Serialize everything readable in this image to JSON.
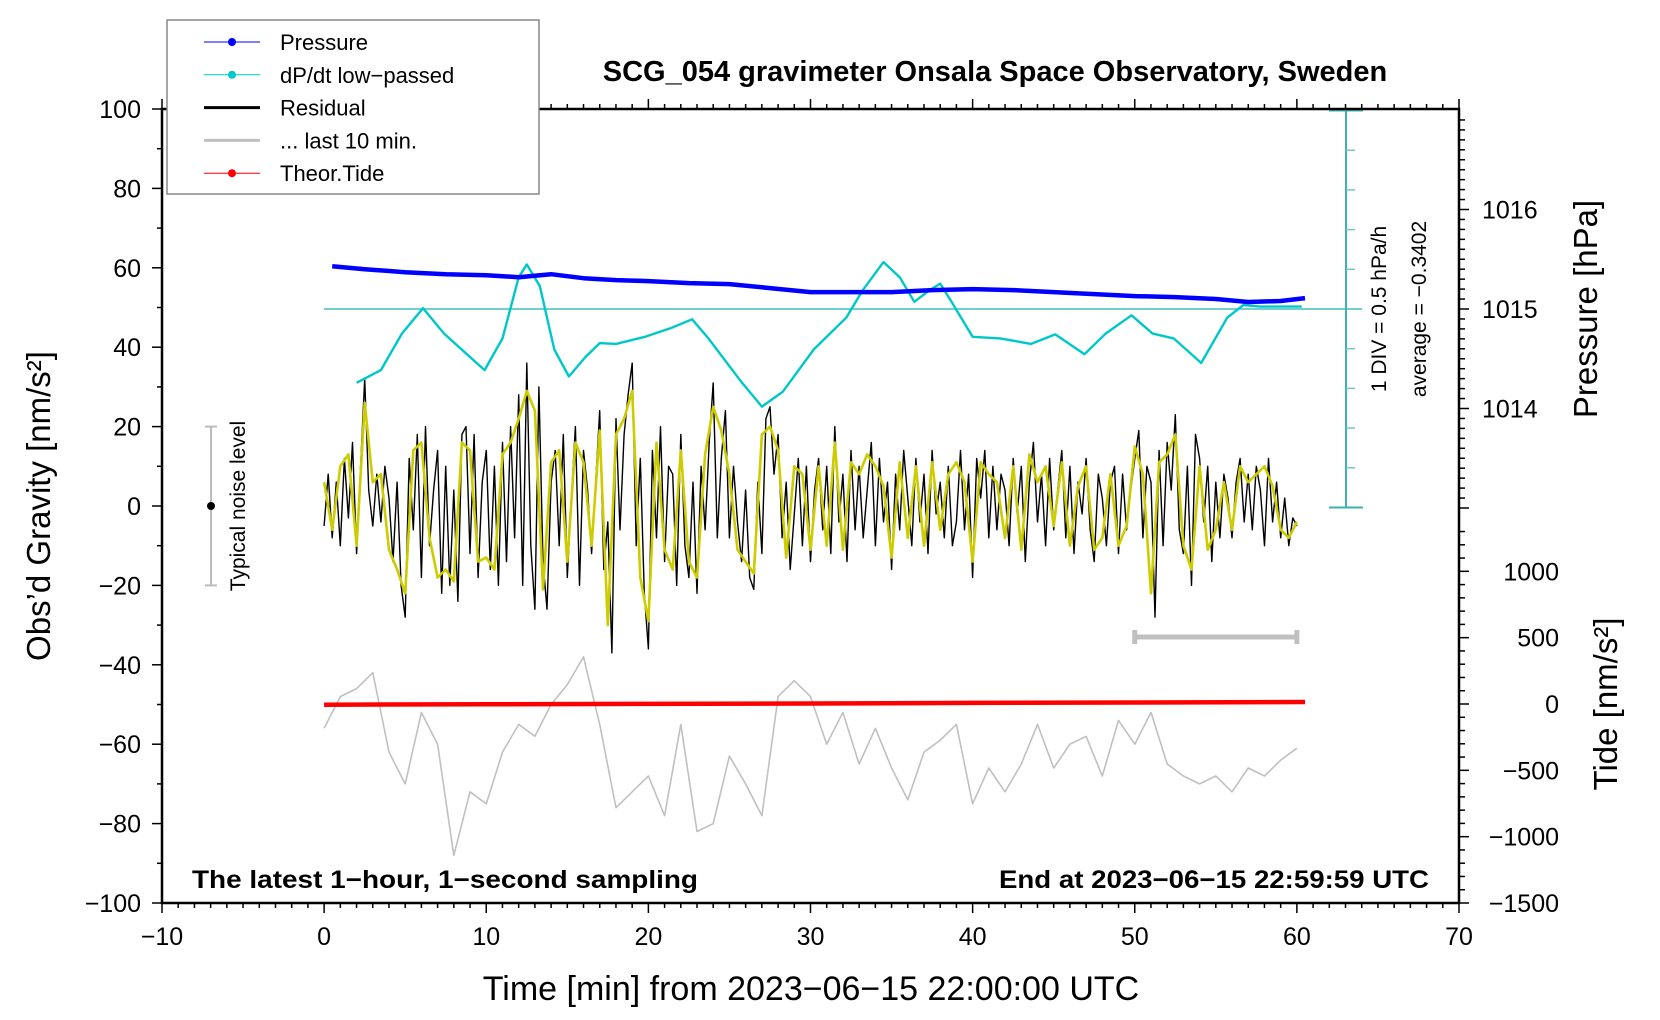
{
  "chart_data": {
    "type": "line",
    "title": "SCG_054 gravimeter Onsala Space Observatory, Sweden",
    "xlabel": "Time [min] from 2023−06−15 22:00:00 UTC",
    "ylabel": "Obs’d Gravity [nm/s²]",
    "ylabel_pressure": "Pressure [hPa]",
    "ylabel_tide": "Tide [nm/s²]",
    "xlim": [
      -10,
      70
    ],
    "ylim": [
      -100,
      100
    ],
    "grid": false,
    "legend_placement": "top-left",
    "x_ticks": [
      -10,
      0,
      10,
      20,
      30,
      40,
      50,
      60,
      70
    ],
    "x_tick_labels": [
      "−10",
      "0",
      "10",
      "20",
      "30",
      "40",
      "50",
      "60",
      "70"
    ],
    "y_ticks": [
      100,
      80,
      60,
      40,
      20,
      0,
      -20,
      -40,
      -60,
      -80,
      -100
    ],
    "y_tick_labels": [
      "100",
      "80",
      "60",
      "40",
      "20",
      "0",
      "−20",
      "−40",
      "−60",
      "−80",
      "−100"
    ],
    "pressure_ticks": [
      1016,
      1015,
      1014
    ],
    "pressure_tick_labels": [
      "1016",
      "1015",
      "1014"
    ],
    "tide_ticks": [
      1000,
      500,
      0,
      -500,
      -1000,
      -1500
    ],
    "tide_tick_labels": [
      "1000",
      "500",
      "0",
      "−500",
      "−1000",
      "−1500"
    ],
    "legend": [
      {
        "label": "Pressure",
        "color": "#0000ff",
        "style": "line-dot"
      },
      {
        "label": "dP/dt low−passed",
        "color": "#00c8c8",
        "style": "line-dot"
      },
      {
        "label": "Residual",
        "color": "#000000",
        "style": "thick-line"
      },
      {
        "label": "... last 10 min.",
        "color": "#c0c0c0",
        "style": "thick-line"
      },
      {
        "label": "Theor.Tide",
        "color": "#ff0000",
        "style": "line-dot"
      }
    ],
    "annotations": {
      "dpdt_scale": "1 DIV = 0.5 hPa/h",
      "dpdt_average": "average = −0.3402",
      "dpdt_average_value": -0.3402,
      "dpdt_div_value": 0.5,
      "noise_label": "Typical noise level",
      "noise_range": [
        -20,
        20
      ],
      "footer_left": "The latest 1−hour, 1−second sampling",
      "footer_right": "End at 2023−06−15 22:59:59 UTC",
      "last10_bar_range_min": [
        50,
        60
      ],
      "last10_bar_level": -33
    },
    "series": [
      {
        "name": "Residual",
        "color": "#000000",
        "x_start": 0,
        "x_step": 0.25,
        "values": [
          -5,
          8,
          -8,
          6,
          -10,
          12,
          -3,
          16,
          -12,
          10,
          32,
          4,
          -5,
          8,
          -4,
          10,
          2,
          -14,
          6,
          -20,
          -28,
          12,
          -6,
          18,
          -18,
          20,
          -10,
          4,
          14,
          -22,
          10,
          -20,
          4,
          -24,
          18,
          20,
          -12,
          18,
          -18,
          6,
          14,
          -16,
          10,
          -20,
          16,
          -14,
          20,
          -8,
          28,
          -20,
          36,
          -10,
          -26,
          30,
          -14,
          -26,
          6,
          14,
          -10,
          18,
          -18,
          2,
          20,
          -20,
          14,
          4,
          -12,
          6,
          24,
          -16,
          -4,
          -37,
          22,
          -6,
          18,
          28,
          36,
          -10,
          12,
          -22,
          -36,
          14,
          -8,
          20,
          -14,
          10,
          8,
          -20,
          18,
          -10,
          -18,
          6,
          -22,
          10,
          -6,
          16,
          31,
          -8,
          12,
          24,
          -8,
          10,
          -4,
          -14,
          4,
          -18,
          -21,
          6,
          -12,
          22,
          25,
          8,
          18,
          -8,
          6,
          -16,
          -2,
          12,
          -10,
          10,
          -14,
          4,
          12,
          -6,
          10,
          -12,
          20,
          -4,
          8,
          -14,
          14,
          -6,
          10,
          -8,
          4,
          16,
          -10,
          12,
          -4,
          6,
          -16,
          8,
          -6,
          14,
          2,
          -10,
          12,
          -4,
          8,
          -12,
          14,
          -2,
          6,
          -8,
          10,
          -10,
          -4,
          14,
          -6,
          8,
          -18,
          12,
          2,
          14,
          -8,
          10,
          -6,
          8,
          4,
          -10,
          12,
          -2,
          10,
          -14,
          6,
          16,
          -4,
          8,
          -10,
          12,
          -6,
          4,
          14,
          -8,
          10,
          -12,
          6,
          -2,
          12,
          -6,
          -14,
          8,
          2,
          -10,
          6,
          10,
          -12,
          8,
          -6,
          4,
          12,
          19,
          -8,
          10,
          6,
          -28,
          14,
          -10,
          16,
          4,
          23,
          -6,
          -12,
          10,
          -20,
          18,
          12,
          -4,
          10,
          -14,
          6,
          -8,
          8,
          2,
          -8,
          6,
          12,
          -4,
          8,
          -6,
          10,
          4,
          -10,
          12,
          -4,
          6,
          -8,
          2,
          -10,
          -3,
          -5
        ]
      },
      {
        "name": "Residual (filtered)",
        "color": "#cccc00",
        "x_start": 0,
        "x_step": 0.5,
        "values": [
          6,
          -6,
          10,
          13,
          -10,
          26,
          6,
          8,
          -11,
          -16,
          -22,
          14,
          16,
          -8,
          -18,
          -16,
          -19,
          16,
          14,
          -14,
          -13,
          -16,
          13,
          16,
          22,
          29,
          24,
          -21,
          11,
          14,
          -14,
          16,
          11,
          -10,
          19,
          -30,
          18,
          22,
          29,
          -18,
          -29,
          16,
          -11,
          -16,
          14,
          -14,
          -18,
          13,
          25,
          19,
          8,
          -11,
          -14,
          -17,
          18,
          20,
          14,
          -13,
          10,
          8,
          -11,
          10,
          -10,
          16,
          -11,
          11,
          8,
          13,
          10,
          5,
          -13,
          11,
          -8,
          10,
          -10,
          11,
          -6,
          8,
          11,
          6,
          -14,
          11,
          8,
          6,
          -8,
          10,
          -11,
          13,
          6,
          10,
          -5,
          11,
          -10,
          5,
          10,
          -11,
          -8,
          8,
          -10,
          -5,
          15,
          8,
          -22,
          11,
          13,
          18,
          -10,
          -16,
          10,
          -11,
          -6,
          6,
          -6,
          10,
          6,
          8,
          10,
          5,
          -6,
          -8,
          -4
        ]
      },
      {
        "name": "... last 10 min.",
        "color": "#c0c0c0",
        "x_start": 0,
        "x_step": 1,
        "values": [
          -56,
          -48,
          -46,
          -42,
          -62,
          -70,
          -52,
          -60,
          -88,
          -72,
          -75,
          -62,
          -55,
          -58,
          -50,
          -45,
          -38,
          -55,
          -76,
          -72,
          -68,
          -78,
          -55,
          -82,
          -80,
          -63,
          -70,
          -78,
          -48,
          -44,
          -48,
          -60,
          -52,
          -65,
          -56,
          -66,
          -74,
          -62,
          -59,
          -55,
          -75,
          -66,
          -72,
          -65,
          -55,
          -66,
          -60,
          -58,
          -68,
          -54,
          -60,
          -52,
          -65,
          -68,
          -70,
          -68,
          -72,
          -66,
          -68,
          -64,
          -61
        ]
      },
      {
        "name": "Pressure",
        "unit": "hPa",
        "color": "#0000ff",
        "x": [
          0.5,
          2.5,
          5,
          7.5,
          10,
          12,
          14,
          16,
          18,
          20,
          22.5,
          25,
          27.5,
          30,
          32.5,
          35,
          37.5,
          40,
          42.5,
          45,
          47.5,
          50,
          52.5,
          55,
          57,
          59,
          60.5
        ],
        "values": [
          1015.43,
          1015.4,
          1015.37,
          1015.35,
          1015.34,
          1015.32,
          1015.35,
          1015.31,
          1015.29,
          1015.28,
          1015.26,
          1015.25,
          1015.21,
          1015.17,
          1015.17,
          1015.17,
          1015.19,
          1015.2,
          1015.19,
          1015.17,
          1015.15,
          1015.13,
          1015.12,
          1015.1,
          1015.07,
          1015.08,
          1015.11
        ]
      },
      {
        "name": "dP/dt low-passed",
        "unit": "hPa/h",
        "color": "#00c8c8",
        "x": [
          2.0,
          3.5,
          4.8,
          6.1,
          7.4,
          8.7,
          9.9,
          11,
          12,
          12.5,
          13.3,
          14.2,
          15.1,
          16.1,
          17,
          18,
          19.8,
          21.4,
          22.7,
          23.7,
          25.7,
          27,
          28.3,
          30.2,
          32.2,
          33.2,
          34.5,
          35.5,
          36.4,
          37.3,
          38,
          38.7,
          40,
          41.7,
          43.6,
          45.1,
          46.9,
          48.2,
          49.8,
          51.1,
          52.4,
          54.1,
          55.7,
          56.7,
          57.7,
          60.3
        ],
        "values": [
          -1.27,
          -1.11,
          -0.65,
          -0.33,
          -0.65,
          -0.89,
          -1.11,
          -0.71,
          0.06,
          0.22,
          -0.05,
          -0.85,
          -1.19,
          -0.95,
          -0.77,
          -0.78,
          -0.69,
          -0.58,
          -0.47,
          -0.71,
          -1.25,
          -1.57,
          -1.38,
          -0.85,
          -0.45,
          -0.11,
          0.25,
          0.06,
          -0.25,
          -0.11,
          -0.02,
          -0.25,
          -0.69,
          -0.71,
          -0.78,
          -0.66,
          -0.91,
          -0.65,
          -0.42,
          -0.65,
          -0.71,
          -1.02,
          -0.45,
          -0.29,
          -0.31,
          -0.31
        ]
      },
      {
        "name": "Theor.Tide",
        "unit": "nm/s²",
        "color": "#ff0000",
        "x": [
          0,
          10,
          20,
          30,
          40,
          50,
          60.5
        ],
        "values": [
          -5,
          -2,
          1,
          4,
          8,
          11,
          15
        ]
      }
    ]
  }
}
